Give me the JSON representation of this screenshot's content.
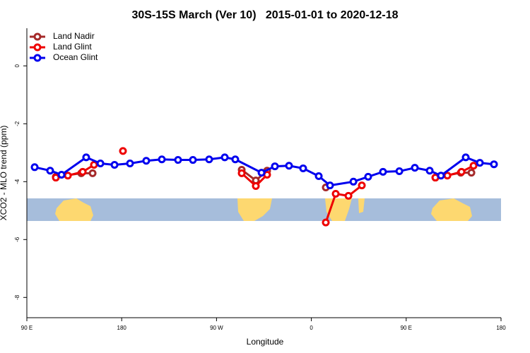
{
  "chart_data": {
    "type": "line",
    "title": "30S-15S March (Ver 10)   2015-01-01 to 2020-12-18",
    "xlabel": "Longitude",
    "ylabel": "XCO2 - MLO trend (ppm)",
    "xlim": [
      90,
      540
    ],
    "ylim": [
      -8.7,
      1.3
    ],
    "xticks": [
      {
        "value": 90,
        "label": "90 E"
      },
      180,
      {
        "value": 270,
        "label": "90 W"
      },
      {
        "value": 360,
        "label": "0"
      },
      {
        "value": 450,
        "label": "90 E"
      },
      {
        "value": 540,
        "label": "180"
      }
    ],
    "yticks": [
      0,
      -2,
      -4,
      -6,
      -8
    ],
    "legend": "top-left",
    "series": [
      {
        "name": "Land Nadir",
        "color": "#a52a2a",
        "x": [
          117.5,
          141.6,
          152.4,
          null,
          293.9,
          307.3,
          318.0,
          null,
          373.7,
          null,
          477.7,
          501.8,
          511.9
        ],
        "values": [
          -3.83,
          -3.71,
          -3.71,
          null,
          -3.59,
          -3.96,
          -3.62,
          null,
          -4.2,
          null,
          -3.86,
          -3.69,
          -3.69
        ]
      },
      {
        "name": "Land Glint",
        "color": "#ee0000",
        "x": [
          117.5,
          128.9,
          143.0,
          153.7,
          null,
          181.2,
          null,
          293.9,
          307.3,
          318.0,
          null,
          373.7,
          383.1,
          395.2,
          407.9,
          null,
          477.7,
          489.1,
          502.5,
          513.9
        ],
        "values": [
          -3.86,
          -3.79,
          -3.66,
          -3.42,
          null,
          -2.94,
          null,
          -3.71,
          -4.15,
          -3.76,
          null,
          -5.41,
          -4.42,
          -4.49,
          -4.13,
          null,
          -3.86,
          -3.79,
          -3.66,
          -3.45
        ]
      },
      {
        "name": "Ocean Glint",
        "color": "#0000ee",
        "x": [
          97.4,
          112.1,
          122.9,
          146.3,
          159.8,
          173.2,
          187.9,
          203.3,
          218.1,
          233.5,
          247.6,
          263.0,
          277.8,
          287.8,
          312.7,
          325.4,
          338.8,
          352.2,
          367.0,
          377.7,
          399.9,
          413.9,
          428.0,
          443.5,
          458.2,
          472.3,
          483.0,
          506.5,
          519.9,
          533.3
        ],
        "values": [
          -3.5,
          -3.62,
          -3.76,
          -3.16,
          -3.37,
          -3.42,
          -3.37,
          -3.28,
          -3.23,
          -3.25,
          -3.25,
          -3.23,
          -3.16,
          -3.23,
          -3.69,
          -3.47,
          -3.45,
          -3.54,
          -3.81,
          -4.13,
          -4.0,
          -3.83,
          -3.66,
          -3.64,
          -3.52,
          -3.62,
          -3.79,
          -3.16,
          -3.35,
          -3.4
        ]
      }
    ]
  }
}
